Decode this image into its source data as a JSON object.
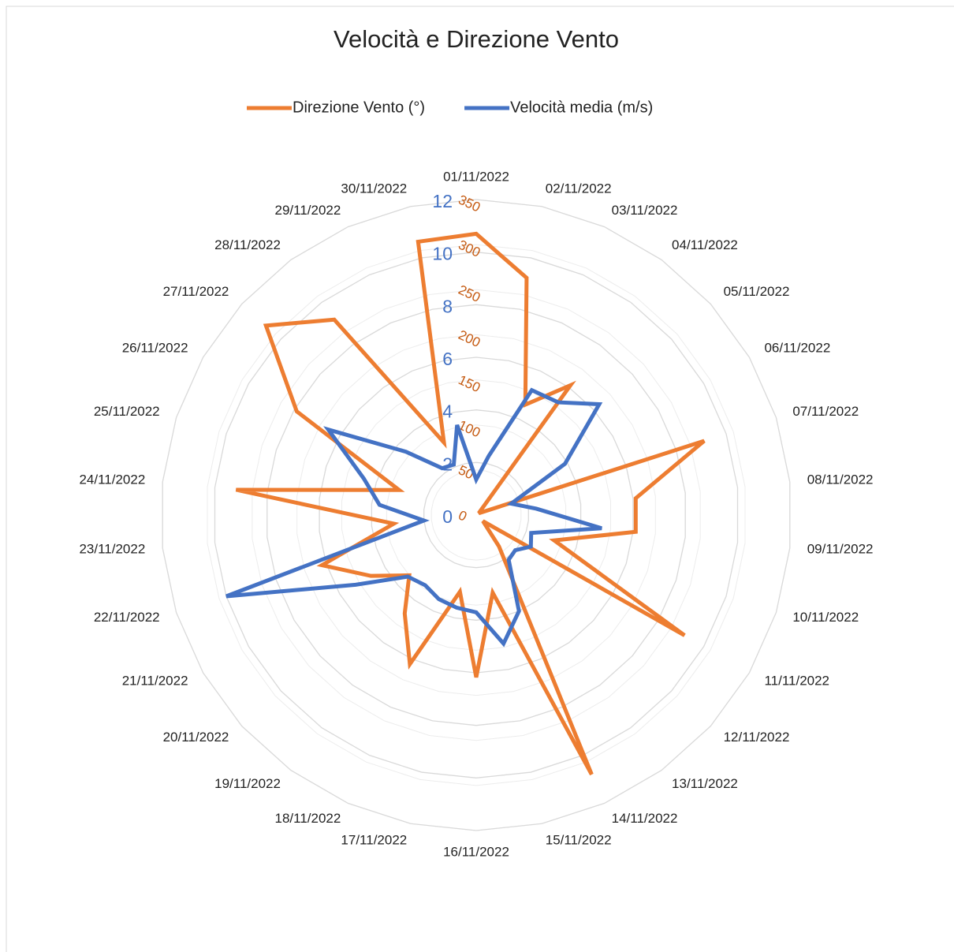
{
  "chart_data": {
    "type": "radar",
    "title": "Velocità e Direzione Vento",
    "categories": [
      "01/11/2022",
      "02/11/2022",
      "03/11/2022",
      "04/11/2022",
      "05/11/2022",
      "06/11/2022",
      "07/11/2022",
      "08/11/2022",
      "09/11/2022",
      "10/11/2022",
      "11/11/2022",
      "12/11/2022",
      "13/11/2022",
      "14/11/2022",
      "15/11/2022",
      "16/11/2022",
      "17/11/2022",
      "18/11/2022",
      "19/11/2022",
      "20/11/2022",
      "21/11/2022",
      "22/11/2022",
      "23/11/2022",
      "24/11/2022",
      "25/11/2022",
      "26/11/2022",
      "27/11/2022",
      "28/11/2022",
      "29/11/2022",
      "30/11/2022"
    ],
    "series": [
      {
        "name": "Direzione Vento  (°)",
        "color": "#ed7d31",
        "values": [
          312,
          269,
          134,
          178,
          5,
          5,
          266,
          178,
          178,
          91,
          267,
          10,
          43,
          315,
          88,
          180,
          87,
          181,
          135,
          100,
          135,
          180,
          92,
          268,
          90,
          230,
          314,
          268,
          88,
          310
        ]
      },
      {
        "name": "Velocità media (m/s)",
        "color": "#4472c4",
        "axis": "y2",
        "values": [
          1.35,
          2.3,
          5.2,
          5.3,
          6.3,
          3.9,
          1.4,
          2.3,
          4.8,
          2.2,
          2.4,
          2.0,
          2.1,
          4.0,
          5.0,
          3.7,
          3.6,
          3.5,
          3.3,
          3.5,
          5.3,
          10.0,
          2.0,
          3.7,
          4.5,
          6.5,
          3.6,
          2.2,
          2.1,
          3.5
        ]
      }
    ],
    "ylim": [
      0,
      350
    ],
    "yticks": [
      0,
      50,
      100,
      150,
      200,
      250,
      300,
      350
    ],
    "ytick_color": "#c55a11",
    "y2lim": [
      0,
      12
    ],
    "y2ticks": [
      0,
      2,
      4,
      6,
      8,
      10,
      12
    ],
    "y2tick_color": "#4472c4",
    "grid": true,
    "legend": "top"
  }
}
